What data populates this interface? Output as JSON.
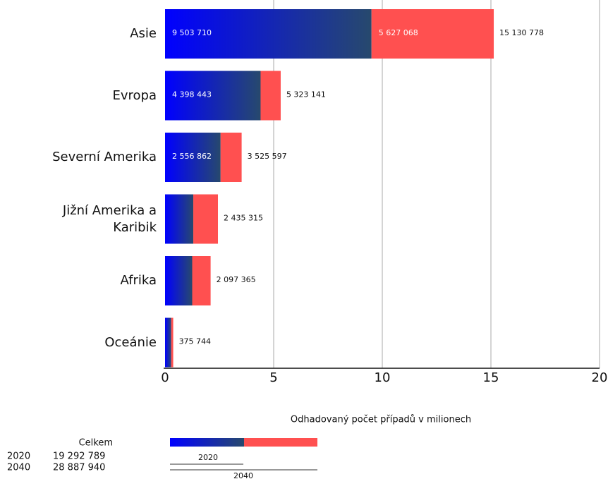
{
  "chart_data": {
    "type": "bar",
    "orientation": "horizontal",
    "stacked": true,
    "categories": [
      "Asie",
      "Evropa",
      "Severní Amerika",
      "Jižní Amerika a Karibik",
      "Afrika",
      "Oceánie"
    ],
    "series": [
      {
        "name": "2020",
        "color": [
          "#0000ff",
          "#27496d"
        ],
        "values": [
          9.50371,
          4.398443,
          2.556862,
          1.3,
          1.25,
          0.28
        ],
        "value_labels": [
          "9 503 710",
          "4 398 443",
          "2 556 862",
          null,
          null,
          null
        ]
      },
      {
        "color": "#ff5050",
        "values": [
          5.627068,
          0.924698,
          0.968735,
          1.135315,
          0.847365,
          0.095744
        ],
        "value_labels": [
          "5 627 068",
          null,
          null,
          null,
          null,
          null
        ]
      }
    ],
    "totals": {
      "values": [
        15.130778,
        5.323141,
        3.525597,
        2.435315,
        2.097365,
        0.375744
      ],
      "value_labels": [
        "15 130 778",
        "5 323 141",
        "3 525 597",
        "2 435 315",
        "2 097 365",
        "375 744"
      ]
    },
    "xlim": [
      0,
      20
    ],
    "xticks": [
      0,
      5,
      10,
      15,
      20
    ],
    "grid": true,
    "xlabel": "Odhadovaný počet případů v milionech",
    "legend": {
      "title": "Celkem",
      "entries": [
        {
          "name": "2020",
          "value": 19.292789,
          "label": "19 292 789"
        },
        {
          "name": "2040",
          "value": 28.88794,
          "label": "28 887 940"
        }
      ]
    }
  }
}
